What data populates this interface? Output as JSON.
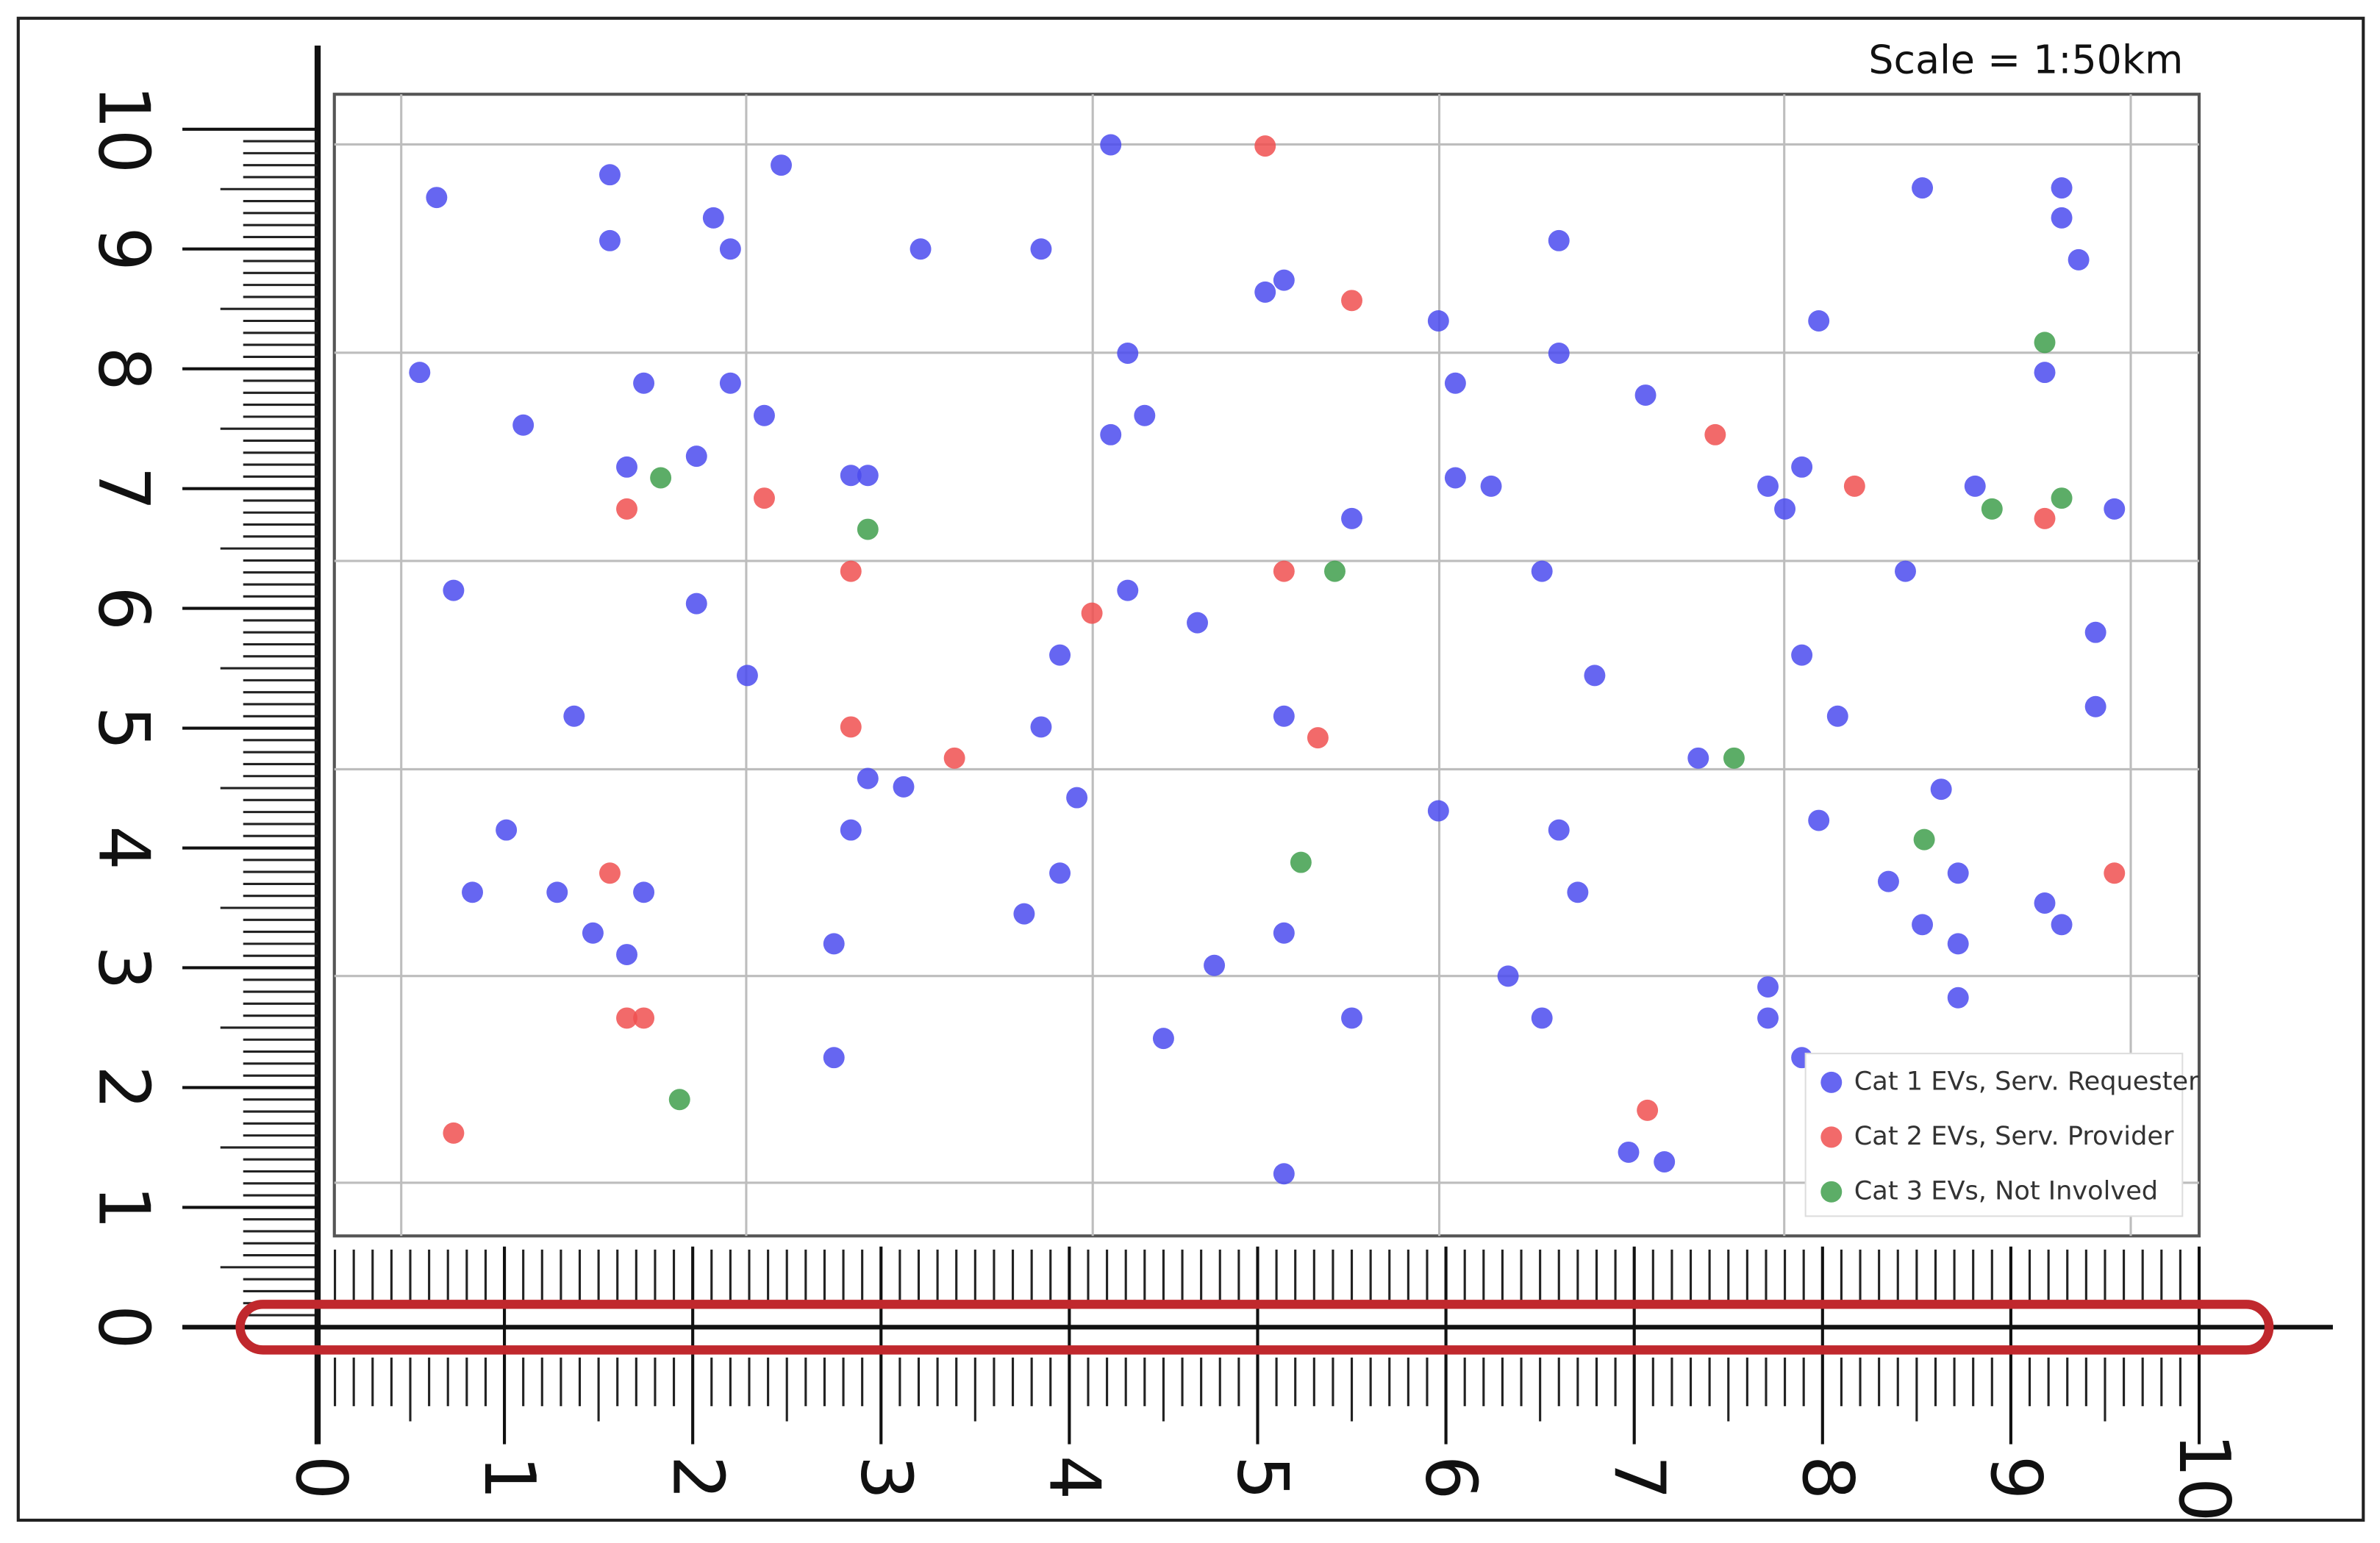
{
  "chart_data": {
    "type": "scatter",
    "annotation": "Scale = 1:50km",
    "xlim": [
      0,
      10
    ],
    "ylim": [
      0,
      10
    ],
    "xticks": [
      0,
      1,
      2,
      3,
      4,
      5,
      6,
      7,
      8,
      9,
      10
    ],
    "yticks": [
      0,
      1,
      2,
      3,
      4,
      5,
      6,
      7,
      8,
      9,
      10
    ],
    "grid": true,
    "legend": "lower right",
    "series": [
      {
        "name": "Cat 1 EVs, Serv. Requester",
        "color": "#4b4bef",
        "x": [
          0.55,
          0.64,
          0.73,
          0.83,
          1.01,
          1.1,
          1.28,
          1.37,
          1.47,
          1.56,
          1.56,
          1.65,
          1.65,
          1.74,
          1.74,
          2.02,
          2.02,
          2.11,
          2.2,
          2.2,
          2.29,
          2.38,
          2.47,
          2.75,
          2.75,
          2.84,
          2.84,
          2.93,
          2.93,
          3.12,
          3.21,
          3.76,
          3.85,
          3.85,
          3.95,
          3.95,
          4.04,
          4.22,
          4.22,
          4.31,
          4.31,
          4.4,
          4.5,
          4.68,
          4.77,
          5.04,
          5.14,
          5.14,
          5.14,
          5.14,
          5.5,
          5.5,
          5.96,
          5.96,
          6.05,
          6.05,
          6.24,
          6.33,
          6.51,
          6.51,
          6.6,
          6.6,
          6.6,
          6.7,
          6.79,
          6.97,
          7.06,
          7.16,
          7.34,
          7.71,
          7.71,
          7.71,
          7.8,
          7.89,
          7.89,
          7.89,
          7.98,
          7.98,
          8.08,
          8.35,
          8.44,
          8.53,
          8.53,
          8.63,
          8.72,
          8.72,
          8.72,
          8.81,
          9.18,
          9.18,
          9.27,
          9.27,
          9.27,
          9.36,
          9.45,
          9.45,
          9.55
        ],
        "y": [
          7.97,
          9.43,
          6.15,
          3.63,
          4.15,
          7.53,
          3.63,
          5.1,
          3.29,
          9.62,
          9.07,
          7.18,
          3.11,
          7.88,
          3.63,
          7.27,
          6.04,
          9.26,
          9.0,
          7.88,
          5.44,
          7.61,
          9.7,
          3.2,
          2.25,
          7.11,
          4.15,
          7.11,
          4.58,
          4.51,
          9.0,
          3.45,
          9.0,
          5.01,
          5.61,
          3.79,
          4.42,
          9.87,
          7.45,
          8.13,
          6.15,
          7.61,
          2.41,
          5.88,
          3.02,
          8.64,
          8.74,
          5.1,
          3.29,
          1.28,
          6.75,
          2.58,
          8.4,
          4.31,
          7.88,
          7.09,
          7.02,
          2.93,
          6.31,
          2.58,
          4.15,
          9.07,
          8.13,
          3.63,
          5.44,
          1.46,
          7.78,
          1.38,
          4.75,
          7.02,
          2.84,
          2.58,
          6.83,
          7.18,
          5.61,
          2.25,
          8.4,
          4.23,
          5.1,
          3.72,
          6.31,
          9.51,
          3.36,
          4.49,
          3.79,
          3.2,
          2.75,
          7.02,
          7.97,
          3.54,
          9.51,
          9.26,
          3.36,
          8.91,
          5.8,
          5.18,
          6.83
        ]
      },
      {
        "name": "Cat 2 EVs, Serv. Provider",
        "color": "#f05050",
        "x": [
          0.73,
          1.56,
          1.65,
          1.65,
          1.74,
          2.38,
          2.84,
          2.84,
          3.39,
          4.12,
          5.04,
          5.14,
          5.32,
          5.5,
          7.07,
          7.43,
          8.17,
          9.18,
          9.55
        ],
        "y": [
          1.62,
          3.79,
          6.83,
          2.58,
          2.58,
          6.92,
          6.31,
          5.01,
          4.75,
          5.96,
          9.86,
          6.31,
          4.92,
          8.57,
          1.81,
          7.45,
          7.02,
          6.75,
          3.79
        ]
      },
      {
        "name": "Cat 3 EVs, Not Involved",
        "color": "#3f9f4c",
        "x": [
          1.83,
          1.93,
          2.93,
          5.23,
          5.41,
          7.53,
          8.54,
          8.9,
          9.18,
          9.27
        ],
        "y": [
          7.09,
          1.9,
          6.66,
          3.88,
          6.31,
          4.75,
          4.07,
          6.83,
          8.22,
          6.92
        ]
      }
    ]
  }
}
